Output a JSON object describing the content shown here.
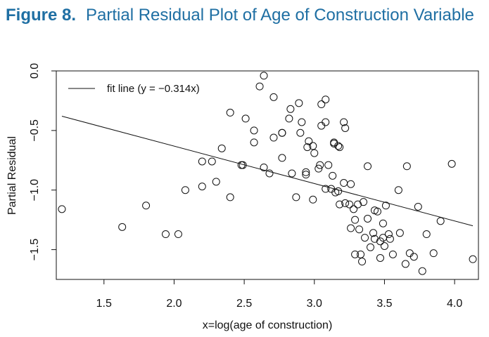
{
  "figure": {
    "label": "Figure 8.",
    "title": "Partial Residual Plot of Age of Construction Variable"
  },
  "colors": {
    "title": "#1f6fa3",
    "ink": "#111111"
  },
  "chart_data": {
    "type": "scatter",
    "xlabel": "x=log(age of construction)",
    "ylabel": "Partial Residual",
    "xlim": [
      1.16,
      4.17
    ],
    "ylim": [
      -1.75,
      0.0
    ],
    "x_ticks": [
      1.5,
      2.0,
      2.5,
      3.0,
      3.5,
      4.0
    ],
    "x_tick_labels": [
      "1.5",
      "2.0",
      "2.5",
      "3.0",
      "3.5",
      "4.0"
    ],
    "y_ticks": [
      0.0,
      -0.5,
      -1.0,
      -1.5
    ],
    "y_tick_labels": [
      "0.0",
      "−0.5",
      "−1.0",
      "−1.5"
    ],
    "grid": false,
    "legend": {
      "position": "top-left",
      "label": "fit line (y = −0.314x)"
    },
    "fit_line": {
      "x": [
        1.2,
        4.13
      ],
      "y": [
        -0.38,
        -1.3
      ]
    },
    "points": [
      [
        1.2,
        -1.16
      ],
      [
        1.63,
        -1.31
      ],
      [
        1.8,
        -1.13
      ],
      [
        1.94,
        -1.37
      ],
      [
        2.03,
        -1.37
      ],
      [
        2.08,
        -1.0
      ],
      [
        2.2,
        -0.76
      ],
      [
        2.2,
        -0.97
      ],
      [
        2.27,
        -0.76
      ],
      [
        2.3,
        -0.93
      ],
      [
        2.34,
        -0.65
      ],
      [
        2.4,
        -0.35
      ],
      [
        2.4,
        -1.06
      ],
      [
        2.48,
        -0.79
      ],
      [
        2.49,
        -0.79
      ],
      [
        2.51,
        -0.4
      ],
      [
        2.57,
        -0.5
      ],
      [
        2.57,
        -0.6
      ],
      [
        2.61,
        -0.13
      ],
      [
        2.64,
        -0.04
      ],
      [
        2.64,
        -0.81
      ],
      [
        2.68,
        -0.86
      ],
      [
        2.71,
        -0.22
      ],
      [
        2.71,
        -0.56
      ],
      [
        2.77,
        -0.52
      ],
      [
        2.77,
        -0.52
      ],
      [
        2.77,
        -0.73
      ],
      [
        2.82,
        -0.4
      ],
      [
        2.83,
        -0.32
      ],
      [
        2.84,
        -0.86
      ],
      [
        2.87,
        -1.06
      ],
      [
        2.89,
        -0.27
      ],
      [
        2.9,
        -0.52
      ],
      [
        2.91,
        -0.43
      ],
      [
        2.94,
        -0.85
      ],
      [
        2.94,
        -0.87
      ],
      [
        2.95,
        -0.64
      ],
      [
        2.96,
        -0.59
      ],
      [
        2.99,
        -0.63
      ],
      [
        2.99,
        -1.08
      ],
      [
        3.0,
        -0.69
      ],
      [
        3.03,
        -0.82
      ],
      [
        3.04,
        -0.79
      ],
      [
        3.05,
        -0.28
      ],
      [
        3.05,
        -0.46
      ],
      [
        3.08,
        -0.24
      ],
      [
        3.08,
        -0.43
      ],
      [
        3.08,
        -0.99
      ],
      [
        3.1,
        -0.79
      ],
      [
        3.12,
        -0.99
      ],
      [
        3.13,
        -0.88
      ],
      [
        3.14,
        -0.6
      ],
      [
        3.14,
        -0.61
      ],
      [
        3.15,
        -1.02
      ],
      [
        3.17,
        -0.63
      ],
      [
        3.17,
        -1.01
      ],
      [
        3.18,
        -0.64
      ],
      [
        3.18,
        -1.12
      ],
      [
        3.21,
        -0.94
      ],
      [
        3.21,
        -0.43
      ],
      [
        3.22,
        -0.48
      ],
      [
        3.22,
        -1.11
      ],
      [
        3.25,
        -1.12
      ],
      [
        3.26,
        -0.95
      ],
      [
        3.26,
        -1.32
      ],
      [
        3.28,
        -1.16
      ],
      [
        3.29,
        -1.25
      ],
      [
        3.29,
        -1.54
      ],
      [
        3.31,
        -1.12
      ],
      [
        3.32,
        -1.33
      ],
      [
        3.33,
        -1.54
      ],
      [
        3.34,
        -1.6
      ],
      [
        3.35,
        -1.1
      ],
      [
        3.36,
        -1.4
      ],
      [
        3.38,
        -0.8
      ],
      [
        3.38,
        -1.24
      ],
      [
        3.4,
        -1.48
      ],
      [
        3.42,
        -1.36
      ],
      [
        3.43,
        -1.17
      ],
      [
        3.43,
        -1.41
      ],
      [
        3.45,
        -1.18
      ],
      [
        3.47,
        -1.43
      ],
      [
        3.47,
        -1.57
      ],
      [
        3.49,
        -1.28
      ],
      [
        3.49,
        -1.4
      ],
      [
        3.5,
        -1.47
      ],
      [
        3.51,
        -1.13
      ],
      [
        3.53,
        -1.37
      ],
      [
        3.54,
        -1.41
      ],
      [
        3.56,
        -1.54
      ],
      [
        3.6,
        -1.0
      ],
      [
        3.61,
        -1.36
      ],
      [
        3.65,
        -1.62
      ],
      [
        3.66,
        -0.8
      ],
      [
        3.68,
        -1.53
      ],
      [
        3.71,
        -1.56
      ],
      [
        3.74,
        -1.14
      ],
      [
        3.77,
        -1.68
      ],
      [
        3.8,
        -1.37
      ],
      [
        3.85,
        -1.53
      ],
      [
        3.9,
        -1.26
      ],
      [
        3.98,
        -0.78
      ],
      [
        4.13,
        -1.58
      ]
    ]
  }
}
